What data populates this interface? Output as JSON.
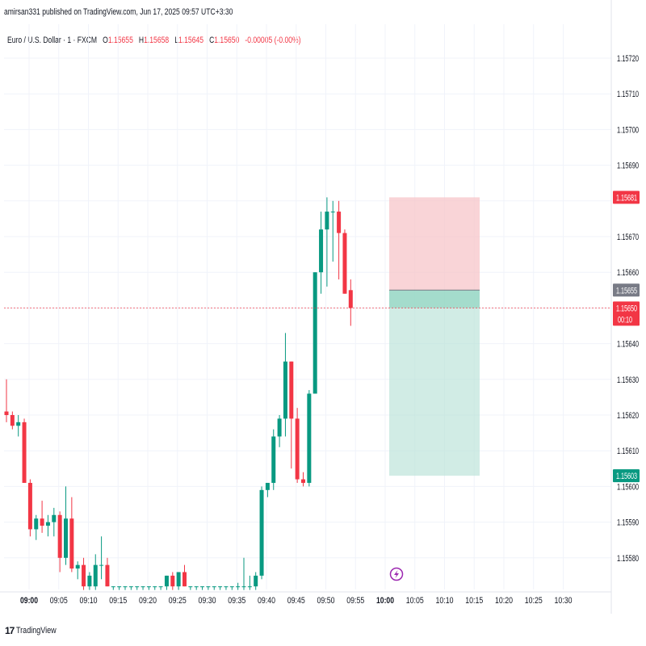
{
  "header": {
    "published_text": "amirsan331 published on TradingView.com, Jun 17, 2025 09:57 UTC+3:30"
  },
  "legend": {
    "symbol": "Euro / U.S. Dollar · 1 · FXCM",
    "open_label": "O",
    "open": "1.15655",
    "high_label": "H",
    "high": "1.15658",
    "low_label": "L",
    "low": "1.15645",
    "close_label": "C",
    "close": "1.15650",
    "change": "-0.00005 (-0.00%)"
  },
  "footer": {
    "logo": "17",
    "brand": "TradingView"
  },
  "colors": {
    "up": "#089981",
    "down": "#f23645",
    "stop_zone": "#f7c6ca",
    "target_zone": "#b8e2d7",
    "entry_badge": "#787b86",
    "grid": "#f0f3fa"
  },
  "chart_data": {
    "type": "candlestick",
    "symbol": "EURUSD",
    "interval": "1",
    "yticks": [
      "1.15720",
      "1.15710",
      "1.15700",
      "1.15690",
      "1.15670",
      "1.15660",
      "1.15640",
      "1.15630",
      "1.15620",
      "1.15610",
      "1.15600",
      "1.15590",
      "1.15580"
    ],
    "xticks": [
      {
        "label": "09:00",
        "bold": true
      },
      {
        "label": "09:05",
        "bold": false
      },
      {
        "label": "09:10",
        "bold": false
      },
      {
        "label": "09:15",
        "bold": false
      },
      {
        "label": "09:20",
        "bold": false
      },
      {
        "label": "09:25",
        "bold": false
      },
      {
        "label": "09:30",
        "bold": false
      },
      {
        "label": "09:35",
        "bold": false
      },
      {
        "label": "09:40",
        "bold": false
      },
      {
        "label": "09:45",
        "bold": false
      },
      {
        "label": "09:50",
        "bold": false
      },
      {
        "label": "09:55",
        "bold": false
      },
      {
        "label": "10:00",
        "bold": true
      },
      {
        "label": "10:05",
        "bold": false
      },
      {
        "label": "10:10",
        "bold": false
      },
      {
        "label": "10:15",
        "bold": false
      },
      {
        "label": "10:20",
        "bold": false
      },
      {
        "label": "10:25",
        "bold": false
      },
      {
        "label": "10:30",
        "bold": false
      }
    ],
    "candles": [
      {
        "o": 1.15621,
        "h": 1.1563,
        "l": 1.15618,
        "c": 1.1562
      },
      {
        "o": 1.1562,
        "h": 1.15621,
        "l": 1.15616,
        "c": 1.15617
      },
      {
        "o": 1.15617,
        "h": 1.1562,
        "l": 1.15614,
        "c": 1.15618
      },
      {
        "o": 1.15618,
        "h": 1.15619,
        "l": 1.15601,
        "c": 1.15601
      },
      {
        "o": 1.15601,
        "h": 1.15602,
        "l": 1.15586,
        "c": 1.15588
      },
      {
        "o": 1.15588,
        "h": 1.15592,
        "l": 1.15585,
        "c": 1.15591
      },
      {
        "o": 1.15591,
        "h": 1.15596,
        "l": 1.15587,
        "c": 1.15589
      },
      {
        "o": 1.15589,
        "h": 1.15592,
        "l": 1.15586,
        "c": 1.1559
      },
      {
        "o": 1.1559,
        "h": 1.15594,
        "l": 1.15586,
        "c": 1.15592
      },
      {
        "o": 1.15592,
        "h": 1.15593,
        "l": 1.15576,
        "c": 1.1558
      },
      {
        "o": 1.1558,
        "h": 1.156,
        "l": 1.15578,
        "c": 1.15591
      },
      {
        "o": 1.15591,
        "h": 1.15597,
        "l": 1.15576,
        "c": 1.15577
      },
      {
        "o": 1.15577,
        "h": 1.15579,
        "l": 1.15574,
        "c": 1.15578
      },
      {
        "o": 1.15578,
        "h": 1.1558,
        "l": 1.15571,
        "c": 1.15572
      },
      {
        "o": 1.15572,
        "h": 1.15576,
        "l": 1.15571,
        "c": 1.15575
      },
      {
        "o": 1.15572,
        "h": 1.15581,
        "l": 1.15571,
        "c": 1.15578
      },
      {
        "o": 1.15578,
        "h": 1.15586,
        "l": 1.15574,
        "c": 1.15578
      },
      {
        "o": 1.15578,
        "h": 1.1558,
        "l": 1.15572,
        "c": 1.15572
      },
      {
        "o": 1.15572,
        "h": 1.15572,
        "l": 1.15571,
        "c": 1.15572
      },
      {
        "o": 1.15572,
        "h": 1.15572,
        "l": 1.15571,
        "c": 1.15572
      },
      {
        "o": 1.15572,
        "h": 1.15572,
        "l": 1.15571,
        "c": 1.15572
      },
      {
        "o": 1.15572,
        "h": 1.15572,
        "l": 1.15571,
        "c": 1.15572
      },
      {
        "o": 1.15572,
        "h": 1.15572,
        "l": 1.15571,
        "c": 1.15572
      },
      {
        "o": 1.15572,
        "h": 1.15572,
        "l": 1.15571,
        "c": 1.15572
      },
      {
        "o": 1.15572,
        "h": 1.15572,
        "l": 1.15571,
        "c": 1.15572
      },
      {
        "o": 1.15572,
        "h": 1.15572,
        "l": 1.15571,
        "c": 1.15572
      },
      {
        "o": 1.15572,
        "h": 1.15572,
        "l": 1.15571,
        "c": 1.15572
      },
      {
        "o": 1.15572,
        "h": 1.15575,
        "l": 1.15571,
        "c": 1.15575
      },
      {
        "o": 1.15575,
        "h": 1.15576,
        "l": 1.15571,
        "c": 1.15572
      },
      {
        "o": 1.15572,
        "h": 1.15576,
        "l": 1.15571,
        "c": 1.15576
      },
      {
        "o": 1.15576,
        "h": 1.15578,
        "l": 1.15572,
        "c": 1.15572
      },
      {
        "o": 1.15572,
        "h": 1.15572,
        "l": 1.15571,
        "c": 1.15572
      },
      {
        "o": 1.15572,
        "h": 1.15572,
        "l": 1.15571,
        "c": 1.15572
      },
      {
        "o": 1.15572,
        "h": 1.15572,
        "l": 1.15571,
        "c": 1.15572
      },
      {
        "o": 1.15572,
        "h": 1.15572,
        "l": 1.15571,
        "c": 1.15572
      },
      {
        "o": 1.15572,
        "h": 1.15572,
        "l": 1.15571,
        "c": 1.15572
      },
      {
        "o": 1.15572,
        "h": 1.15572,
        "l": 1.15571,
        "c": 1.15572
      },
      {
        "o": 1.15572,
        "h": 1.15572,
        "l": 1.15571,
        "c": 1.15572
      },
      {
        "o": 1.15572,
        "h": 1.15572,
        "l": 1.15571,
        "c": 1.15572
      },
      {
        "o": 1.15572,
        "h": 1.15573,
        "l": 1.15571,
        "c": 1.15572
      },
      {
        "o": 1.15572,
        "h": 1.1558,
        "l": 1.15571,
        "c": 1.15572
      },
      {
        "o": 1.15572,
        "h": 1.15575,
        "l": 1.15571,
        "c": 1.15572
      },
      {
        "o": 1.15572,
        "h": 1.15576,
        "l": 1.15571,
        "c": 1.15575
      },
      {
        "o": 1.15575,
        "h": 1.156,
        "l": 1.15574,
        "c": 1.15599
      },
      {
        "o": 1.15599,
        "h": 1.15601,
        "l": 1.15597,
        "c": 1.15601
      },
      {
        "o": 1.15601,
        "h": 1.15616,
        "l": 1.15599,
        "c": 1.15614
      },
      {
        "o": 1.15614,
        "h": 1.1562,
        "l": 1.15611,
        "c": 1.15619
      },
      {
        "o": 1.15619,
        "h": 1.15643,
        "l": 1.15614,
        "c": 1.15635
      },
      {
        "o": 1.15635,
        "h": 1.15635,
        "l": 1.15605,
        "c": 1.15619
      },
      {
        "o": 1.15619,
        "h": 1.15622,
        "l": 1.15601,
        "c": 1.15602
      },
      {
        "o": 1.15602,
        "h": 1.15604,
        "l": 1.156,
        "c": 1.15601
      },
      {
        "o": 1.15601,
        "h": 1.15627,
        "l": 1.156,
        "c": 1.15626
      },
      {
        "o": 1.15626,
        "h": 1.1566,
        "l": 1.15626,
        "c": 1.1566
      },
      {
        "o": 1.1566,
        "h": 1.15677,
        "l": 1.15654,
        "c": 1.15672
      },
      {
        "o": 1.15672,
        "h": 1.15681,
        "l": 1.15656,
        "c": 1.15677
      },
      {
        "o": 1.15677,
        "h": 1.1568,
        "l": 1.15663,
        "c": 1.15677
      },
      {
        "o": 1.15677,
        "h": 1.1568,
        "l": 1.15658,
        "c": 1.15671
      },
      {
        "o": 1.15671,
        "h": 1.15672,
        "l": 1.15654,
        "c": 1.15654
      },
      {
        "o": 1.15655,
        "h": 1.15658,
        "l": 1.15645,
        "c": 1.1565
      }
    ],
    "position": {
      "type": "short",
      "entry": 1.15655,
      "stop": 1.15681,
      "target": 1.15603,
      "start_time": "09:56",
      "end_time": "10:10"
    },
    "price_labels": {
      "stop": "1.15681",
      "entry": "1.15655",
      "current": "1.15650",
      "countdown": "00:10",
      "target": "1.15603"
    },
    "current_price": 1.1565,
    "ylim": [
      1.15568,
      1.15735
    ]
  }
}
